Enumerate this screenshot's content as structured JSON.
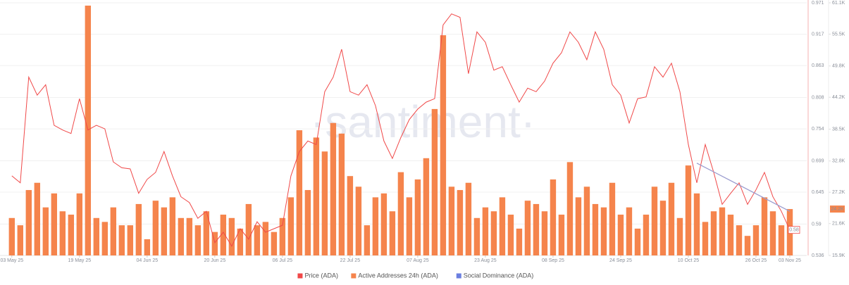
{
  "chart_data": {
    "type": "combo",
    "watermark": "·santiment·",
    "x": [
      0,
      2,
      4,
      6,
      8,
      10,
      12,
      14,
      16,
      18,
      20,
      22,
      24,
      26,
      28,
      30,
      32,
      34,
      36,
      38,
      40,
      42,
      44,
      46,
      48,
      50,
      52,
      54,
      56,
      58,
      60,
      62,
      64,
      66,
      68,
      70,
      72,
      74,
      76,
      78,
      80,
      82,
      84,
      86,
      88,
      90,
      92,
      94,
      96,
      98,
      100,
      102,
      104,
      106,
      108,
      110,
      112,
      114,
      116,
      118,
      120,
      122,
      124,
      126,
      128,
      130,
      132,
      134,
      136,
      138,
      140,
      142,
      144,
      146,
      148,
      150,
      152,
      154,
      156,
      158,
      160,
      162,
      164,
      166,
      168,
      170,
      172,
      174,
      176,
      178,
      180,
      182,
      184
    ],
    "xlim": [
      -2.8,
      188
    ],
    "xticks": [
      {
        "value": 0,
        "label": "03 May 25"
      },
      {
        "value": 16,
        "label": "19 May 25"
      },
      {
        "value": 32,
        "label": "04 Jun 25"
      },
      {
        "value": 48,
        "label": "20 Jun 25"
      },
      {
        "value": 64,
        "label": "06 Jul 25"
      },
      {
        "value": 80,
        "label": "22 Jul 25"
      },
      {
        "value": 96,
        "label": "07 Aug 25"
      },
      {
        "value": 112,
        "label": "23 Aug 25"
      },
      {
        "value": 128,
        "label": "08 Sep 25"
      },
      {
        "value": 144,
        "label": "24 Sep 25"
      },
      {
        "value": 160,
        "label": "10 Oct 25"
      },
      {
        "value": 176,
        "label": "26 Oct 25"
      },
      {
        "value": 184,
        "label": "03 Nov 25"
      }
    ],
    "ylim": [
      0.536,
      0.971
    ],
    "yticks": [
      0.536,
      0.59,
      0.645,
      0.699,
      0.754,
      0.808,
      0.863,
      0.917,
      0.971
    ],
    "y2lim": [
      15900,
      61100
    ],
    "y2ticks": [
      {
        "value": 15900,
        "label": "15.9K"
      },
      {
        "value": 21600,
        "label": "21.6K"
      },
      {
        "value": 27200,
        "label": "27.2K"
      },
      {
        "value": 32800,
        "label": "32.8K"
      },
      {
        "value": 38500,
        "label": "38.5K"
      },
      {
        "value": 44200,
        "label": "44.2K"
      },
      {
        "value": 49800,
        "label": "49.8K"
      },
      {
        "value": 55500,
        "label": "55.5K"
      },
      {
        "value": 61100,
        "label": "61.1K"
      }
    ],
    "grid": true,
    "legend": "bottom",
    "series": [
      {
        "name": "Price (ADA)",
        "type": "line",
        "color": "#f04848",
        "values": [
          0.673,
          0.661,
          0.843,
          0.812,
          0.83,
          0.76,
          0.752,
          0.746,
          0.806,
          0.752,
          0.76,
          0.754,
          0.697,
          0.687,
          0.685,
          0.643,
          0.667,
          0.679,
          0.715,
          0.673,
          0.637,
          0.627,
          0.6,
          0.612,
          0.558,
          0.576,
          0.552,
          0.582,
          0.564,
          0.594,
          0.576,
          0.582,
          0.588,
          0.673,
          0.715,
          0.733,
          0.727,
          0.818,
          0.843,
          0.891,
          0.818,
          0.812,
          0.83,
          0.794,
          0.733,
          0.703,
          0.739,
          0.77,
          0.788,
          0.8,
          0.806,
          0.933,
          0.952,
          0.946,
          0.849,
          0.921,
          0.903,
          0.855,
          0.861,
          0.83,
          0.8,
          0.824,
          0.818,
          0.836,
          0.867,
          0.885,
          0.921,
          0.903,
          0.873,
          0.921,
          0.891,
          0.83,
          0.812,
          0.764,
          0.806,
          0.809,
          0.861,
          0.843,
          0.867,
          0.818,
          0.727,
          0.661,
          0.727,
          0.679,
          0.624,
          0.643,
          0.661,
          0.624,
          0.649,
          0.679,
          0.637,
          0.612,
          0.58
        ]
      },
      {
        "name": "Active Addresses 24h (ADA)",
        "type": "bar",
        "axis": "y2",
        "color": "#f5844c",
        "values": [
          22600,
          21300,
          27600,
          28900,
          24500,
          27000,
          23800,
          23200,
          27000,
          60600,
          22600,
          21900,
          24500,
          21300,
          21300,
          25100,
          18800,
          25700,
          24500,
          26300,
          22600,
          22600,
          21300,
          23800,
          20100,
          23200,
          22600,
          20700,
          25100,
          21300,
          21900,
          20100,
          22600,
          26300,
          38300,
          27600,
          37000,
          34500,
          39600,
          37700,
          30100,
          28200,
          21300,
          26300,
          27000,
          23800,
          30800,
          26300,
          29500,
          33300,
          42100,
          55300,
          28200,
          27600,
          28900,
          22600,
          24500,
          23800,
          26300,
          23200,
          20700,
          25700,
          25100,
          23800,
          29500,
          23200,
          32600,
          26300,
          28200,
          25100,
          24500,
          28900,
          23200,
          24500,
          20700,
          23200,
          28200,
          25700,
          28900,
          22600,
          32000,
          27000,
          21900,
          23800,
          24500,
          23200,
          21300,
          19400,
          21300,
          26300,
          23800,
          21300,
          24200
        ],
        "value_labels": [
          null,
          null,
          null,
          null,
          null,
          null,
          null,
          null,
          null,
          null,
          null,
          null,
          null,
          null,
          null,
          null,
          null,
          null,
          null,
          null,
          null,
          null,
          null,
          null,
          null,
          null,
          null,
          null,
          null,
          null,
          null,
          null,
          null,
          null,
          null,
          null,
          null,
          null,
          null,
          null,
          null,
          null,
          null,
          null,
          null,
          null,
          null,
          null,
          null,
          null,
          null,
          null,
          null,
          null,
          null,
          null,
          null,
          null,
          null,
          null,
          null,
          null,
          null,
          null,
          null,
          null,
          null,
          null,
          null,
          null,
          null,
          null,
          null,
          null,
          null,
          null,
          null,
          null,
          null,
          null,
          null,
          null,
          null,
          null,
          null,
          null,
          null,
          null,
          null,
          null,
          null,
          null,
          "24.2K"
        ]
      },
      {
        "name": "Social Dominance (ADA)",
        "type": "line",
        "color": "#6b7fe0"
      }
    ],
    "trendline": {
      "x": [
        162,
        184
      ],
      "values": [
        0.695,
        0.612
      ],
      "color": "#9a9ccf"
    }
  }
}
